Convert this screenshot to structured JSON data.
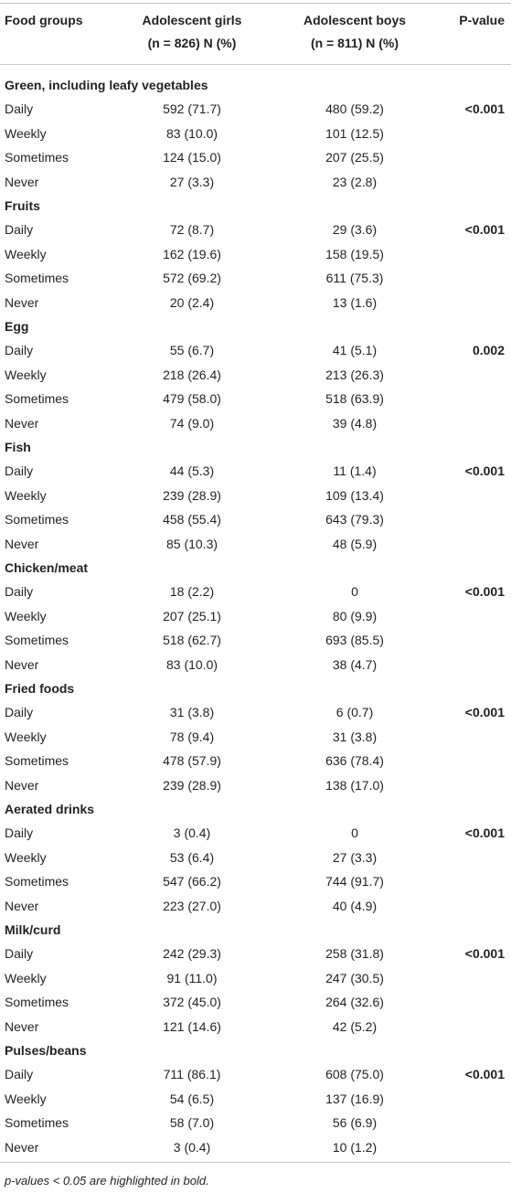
{
  "table": {
    "header": {
      "food_groups": "Food groups",
      "girls_title": "Adolescent girls",
      "girls_sub": "(n = 826) N (%)",
      "boys_title": "Adolescent boys",
      "boys_sub": "(n = 811) N (%)",
      "p_value": "P-value"
    },
    "groups": [
      {
        "name": "Green, including leafy vegetables",
        "p_value": "<0.001",
        "rows": [
          [
            "Daily",
            "592 (71.7)",
            "480 (59.2)"
          ],
          [
            "Weekly",
            "83 (10.0)",
            "101 (12.5)"
          ],
          [
            "Sometimes",
            "124 (15.0)",
            "207 (25.5)"
          ],
          [
            "Never",
            "27 (3.3)",
            "23 (2.8)"
          ]
        ]
      },
      {
        "name": "Fruits",
        "p_value": "<0.001",
        "rows": [
          [
            "Daily",
            "72 (8.7)",
            "29 (3.6)"
          ],
          [
            "Weekly",
            "162 (19.6)",
            "158 (19.5)"
          ],
          [
            "Sometimes",
            "572 (69.2)",
            "611 (75.3)"
          ],
          [
            "Never",
            "20 (2.4)",
            "13 (1.6)"
          ]
        ]
      },
      {
        "name": "Egg",
        "p_value": "0.002",
        "rows": [
          [
            "Daily",
            "55 (6.7)",
            "41 (5.1)"
          ],
          [
            "Weekly",
            "218 (26.4)",
            "213 (26.3)"
          ],
          [
            "Sometimes",
            "479 (58.0)",
            "518 (63.9)"
          ],
          [
            "Never",
            "74 (9.0)",
            "39 (4.8)"
          ]
        ]
      },
      {
        "name": "Fish",
        "p_value": "<0.001",
        "rows": [
          [
            "Daily",
            "44 (5.3)",
            "11 (1.4)"
          ],
          [
            "Weekly",
            "239 (28.9)",
            "109 (13.4)"
          ],
          [
            "Sometimes",
            "458 (55.4)",
            "643 (79.3)"
          ],
          [
            "Never",
            "85 (10.3)",
            "48 (5.9)"
          ]
        ]
      },
      {
        "name": "Chicken/meat",
        "p_value": "<0.001",
        "rows": [
          [
            "Daily",
            "18 (2.2)",
            "0"
          ],
          [
            "Weekly",
            "207 (25.1)",
            "80 (9.9)"
          ],
          [
            "Sometimes",
            "518 (62.7)",
            "693 (85.5)"
          ],
          [
            "Never",
            "83 (10.0)",
            "38 (4.7)"
          ]
        ]
      },
      {
        "name": "Fried foods",
        "p_value": "<0.001",
        "rows": [
          [
            "Daily",
            "31 (3.8)",
            "6 (0.7)"
          ],
          [
            "Weekly",
            "78 (9.4)",
            "31 (3.8)"
          ],
          [
            "Sometimes",
            "478 (57.9)",
            "636 (78.4)"
          ],
          [
            "Never",
            "239 (28.9)",
            "138 (17.0)"
          ]
        ]
      },
      {
        "name": "Aerated drinks",
        "p_value": "<0.001",
        "rows": [
          [
            "Daily",
            "3 (0.4)",
            "0"
          ],
          [
            "Weekly",
            "53 (6.4)",
            "27 (3.3)"
          ],
          [
            "Sometimes",
            "547 (66.2)",
            "744 (91.7)"
          ],
          [
            "Never",
            "223 (27.0)",
            "40 (4.9)"
          ]
        ]
      },
      {
        "name": "Milk/curd",
        "p_value": "<0.001",
        "rows": [
          [
            "Daily",
            "242 (29.3)",
            "258 (31.8)"
          ],
          [
            "Weekly",
            "91 (11.0)",
            "247 (30.5)"
          ],
          [
            "Sometimes",
            "372 (45.0)",
            "264 (32.6)"
          ],
          [
            "Never",
            "121 (14.6)",
            "42 (5.2)"
          ]
        ]
      },
      {
        "name": "Pulses/beans",
        "p_value": "<0.001",
        "rows": [
          [
            "Daily",
            "711 (86.1)",
            "608 (75.0)"
          ],
          [
            "Weekly",
            "54 (6.5)",
            "137 (16.9)"
          ],
          [
            "Sometimes",
            "58 (7.0)",
            "56 (6.9)"
          ],
          [
            "Never",
            "3 (0.4)",
            "10 (1.2)"
          ]
        ]
      }
    ],
    "footnote": "p-values < 0.05 are highlighted in bold."
  }
}
